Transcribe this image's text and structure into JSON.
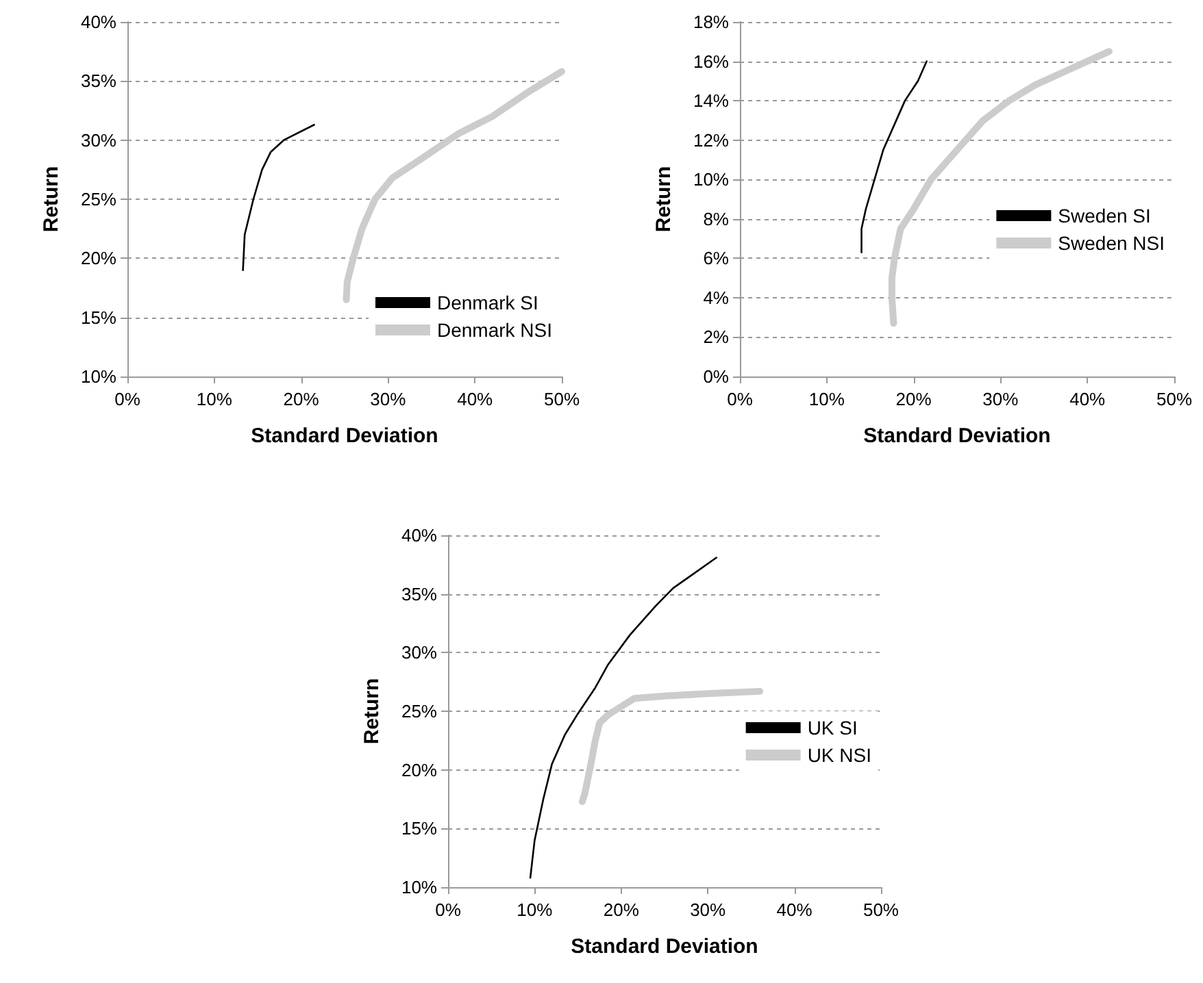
{
  "chart_data": [
    {
      "type": "line",
      "xlabel": "Standard Deviation",
      "ylabel": "Return",
      "xlim": [
        0,
        50
      ],
      "ylim": [
        10,
        40
      ],
      "xticks": [
        {
          "value": 0,
          "label": "0%"
        },
        {
          "value": 10,
          "label": "10%"
        },
        {
          "value": 20,
          "label": "20%"
        },
        {
          "value": 30,
          "label": "30%"
        },
        {
          "value": 40,
          "label": "40%"
        },
        {
          "value": 50,
          "label": "50%"
        }
      ],
      "yticks": [
        {
          "value": 10,
          "label": "10%"
        },
        {
          "value": 15,
          "label": "15%"
        },
        {
          "value": 20,
          "label": "20%"
        },
        {
          "value": 25,
          "label": "25%"
        },
        {
          "value": 30,
          "label": "30%"
        },
        {
          "value": 35,
          "label": "35%"
        },
        {
          "value": 40,
          "label": "40%"
        }
      ],
      "grid": "y",
      "legend": "bottom right",
      "marker": "none",
      "line_style": "solid",
      "series": [
        {
          "name": "Denmark SI",
          "color": "#000000",
          "x": [
            13.3,
            13.5,
            14.5,
            15.5,
            16.5,
            18,
            21.5
          ],
          "values": [
            19,
            22,
            25,
            27.5,
            29,
            30,
            31.3
          ]
        },
        {
          "name": "Denmark NSI",
          "color": "#cccccc",
          "x": [
            25.2,
            25.3,
            26,
            27,
            28.5,
            30.5,
            34,
            38,
            42,
            46,
            50
          ],
          "values": [
            16.5,
            18,
            20,
            22.5,
            25,
            26.8,
            28.5,
            30.5,
            32,
            34,
            35.8
          ]
        }
      ]
    },
    {
      "type": "line",
      "xlabel": "Standard Deviation",
      "ylabel": "Return",
      "xlim": [
        0,
        50
      ],
      "ylim": [
        0,
        18
      ],
      "xticks": [
        {
          "value": 0,
          "label": "0%"
        },
        {
          "value": 10,
          "label": "10%"
        },
        {
          "value": 20,
          "label": "20%"
        },
        {
          "value": 30,
          "label": "30%"
        },
        {
          "value": 40,
          "label": "40%"
        },
        {
          "value": 50,
          "label": "50%"
        }
      ],
      "yticks": [
        {
          "value": 0,
          "label": "0%"
        },
        {
          "value": 2,
          "label": "2%"
        },
        {
          "value": 4,
          "label": "4%"
        },
        {
          "value": 6,
          "label": "6%"
        },
        {
          "value": 8,
          "label": "8%"
        },
        {
          "value": 10,
          "label": "10%"
        },
        {
          "value": 12,
          "label": "12%"
        },
        {
          "value": 14,
          "label": "14%"
        },
        {
          "value": 16,
          "label": "16%"
        },
        {
          "value": 18,
          "label": "18%"
        }
      ],
      "grid": "y",
      "legend": "right",
      "marker": "none",
      "line_style": "solid",
      "series": [
        {
          "name": "Sweden SI",
          "color": "#000000",
          "x": [
            14,
            14,
            14.5,
            15.5,
            16.5,
            18,
            19,
            20.5,
            21.5
          ],
          "values": [
            6.3,
            7.5,
            8.5,
            10,
            11.5,
            13,
            14,
            15,
            16
          ]
        },
        {
          "name": "Sweden NSI",
          "color": "#cccccc",
          "x": [
            17.7,
            17.5,
            17.5,
            17.8,
            18.5,
            20,
            22,
            25,
            28,
            31,
            34,
            38,
            42.5
          ],
          "values": [
            2.7,
            4,
            5,
            6,
            7.5,
            8.5,
            10,
            11.5,
            13,
            14,
            14.8,
            15.6,
            16.5
          ]
        }
      ]
    },
    {
      "type": "line",
      "xlabel": "Standard Deviation",
      "ylabel": "Return",
      "xlim": [
        0,
        50
      ],
      "ylim": [
        10,
        40
      ],
      "xticks": [
        {
          "value": 0,
          "label": "0%"
        },
        {
          "value": 10,
          "label": "10%"
        },
        {
          "value": 20,
          "label": "20%"
        },
        {
          "value": 30,
          "label": "30%"
        },
        {
          "value": 40,
          "label": "40%"
        },
        {
          "value": 50,
          "label": "50%"
        }
      ],
      "yticks": [
        {
          "value": 10,
          "label": "10%"
        },
        {
          "value": 15,
          "label": "15%"
        },
        {
          "value": 20,
          "label": "20%"
        },
        {
          "value": 25,
          "label": "25%"
        },
        {
          "value": 30,
          "label": "30%"
        },
        {
          "value": 35,
          "label": "35%"
        },
        {
          "value": 40,
          "label": "40%"
        }
      ],
      "grid": "y",
      "legend": "right",
      "marker": "none",
      "line_style": "solid",
      "series": [
        {
          "name": "UK SI",
          "color": "#000000",
          "x": [
            9.5,
            10,
            11,
            12,
            13.5,
            15,
            17,
            18.5,
            21,
            24,
            26,
            28.5,
            31
          ],
          "values": [
            10.8,
            14,
            17.5,
            20.5,
            23,
            24.8,
            27,
            29,
            31.5,
            34,
            35.5,
            36.8,
            38.1
          ]
        },
        {
          "name": "UK NSI",
          "color": "#cccccc",
          "x": [
            15.5,
            15.8,
            16.5,
            17,
            17.5,
            18.5,
            20,
            21.5,
            25,
            30,
            36
          ],
          "values": [
            17.3,
            18,
            20.5,
            22.5,
            24,
            24.7,
            25.4,
            26.1,
            26.3,
            26.5,
            26.7
          ]
        }
      ]
    }
  ]
}
